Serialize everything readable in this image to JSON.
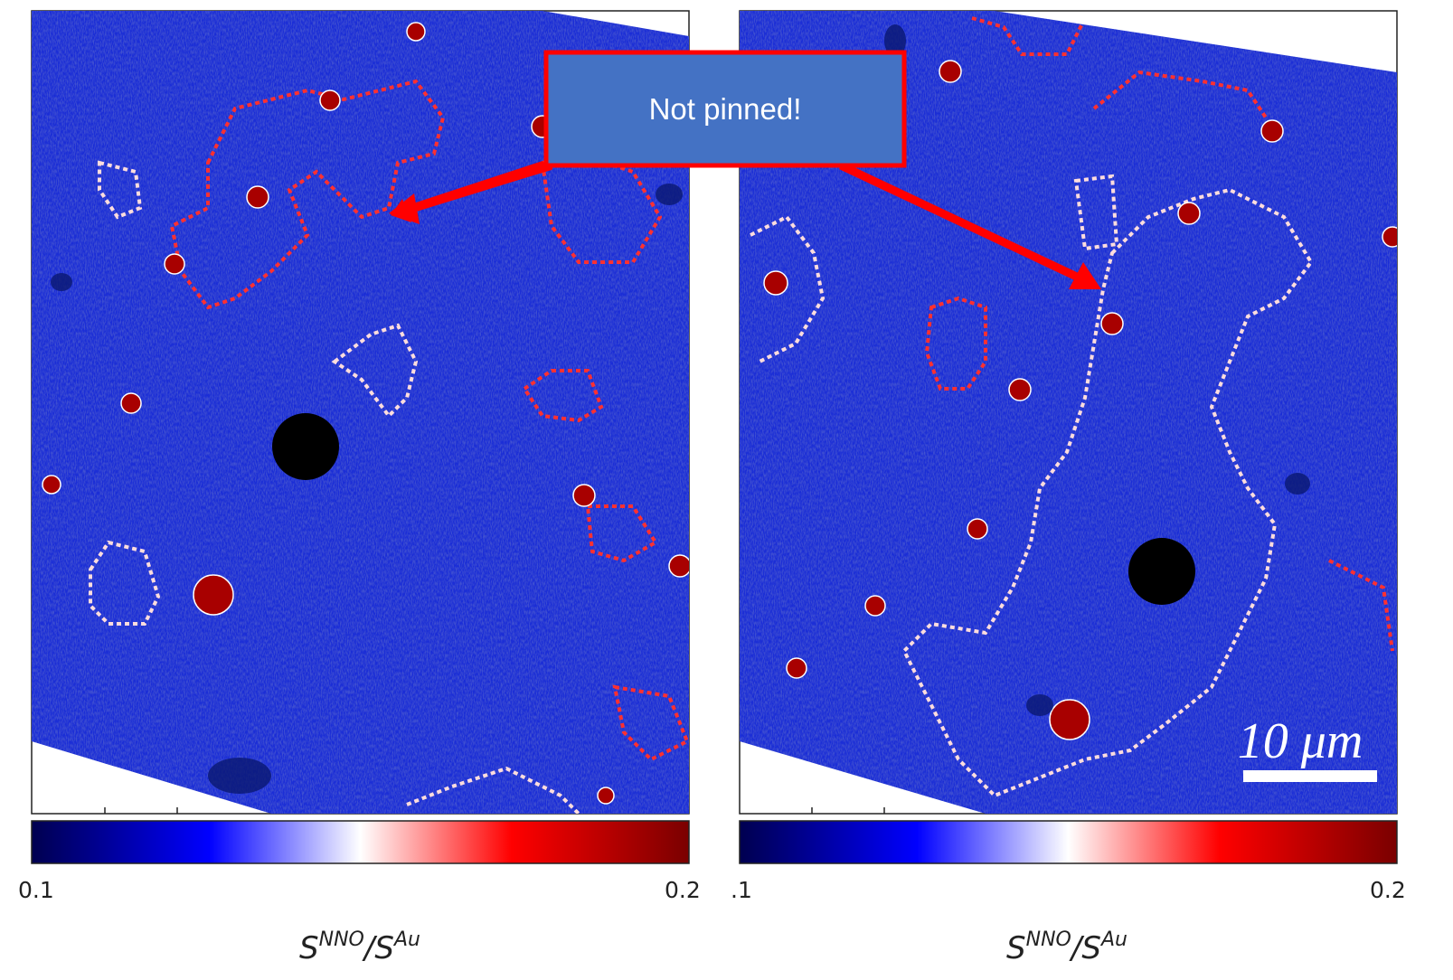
{
  "callout": {
    "text": "Not pinned!"
  },
  "scale_bar": {
    "text": "10 μm"
  },
  "panels": [
    {
      "colorbar": {
        "min_label": "0.1",
        "max_label": "0.2"
      },
      "label": {
        "base1": "S",
        "sup1": "NNO",
        "slash": "/",
        "base2": "S",
        "sup2": "Au"
      }
    },
    {
      "colorbar": {
        "min_label": ".1",
        "max_label": "0.2"
      },
      "label": {
        "base1": "S",
        "sup1": "NNO",
        "slash": "/",
        "base2": "S",
        "sup2": "Au"
      }
    }
  ]
}
